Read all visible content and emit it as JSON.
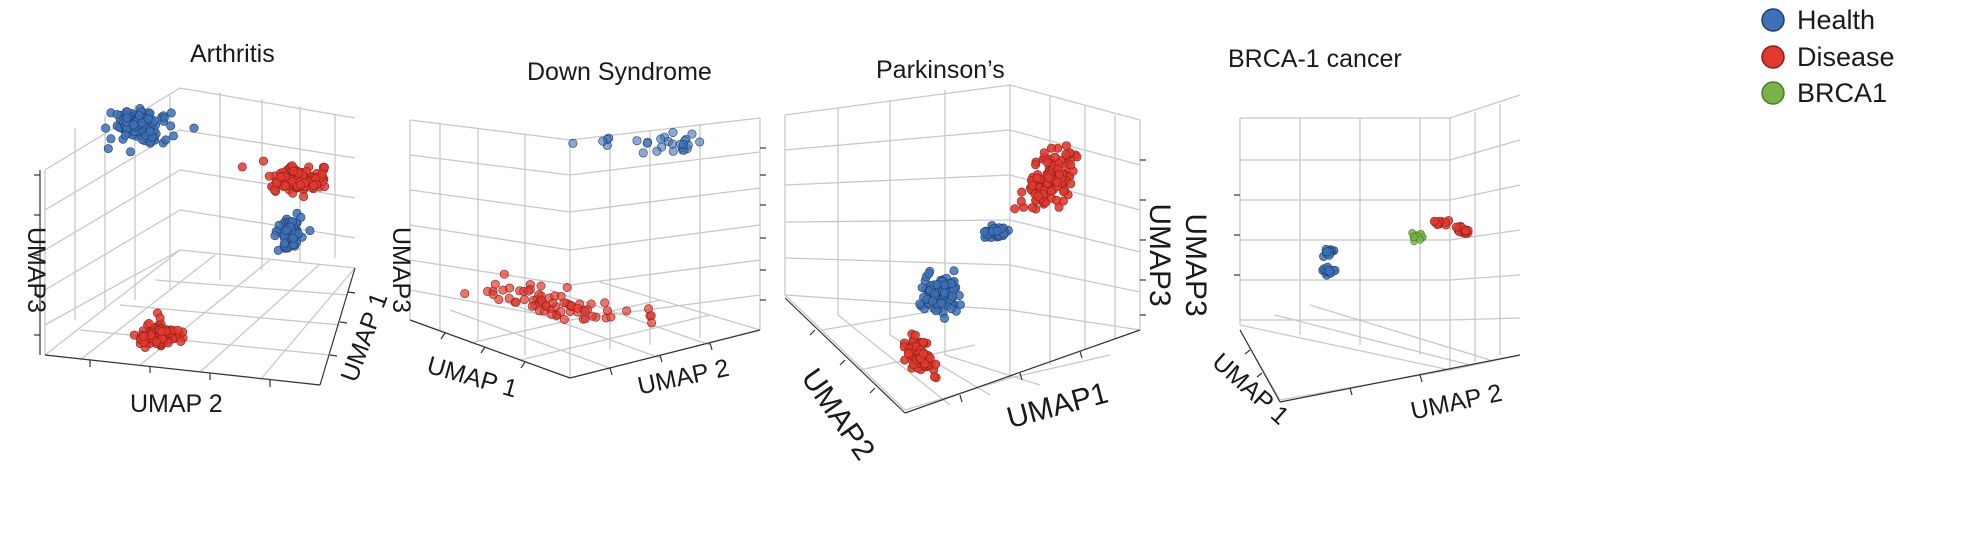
{
  "chart_data": [
    {
      "type": "scatter",
      "projection": "3d",
      "title": "Arthritis",
      "axes": {
        "x": "UMAP 1",
        "y": "UMAP 2",
        "z": "UMAP3"
      },
      "grid": true,
      "legend": "top-right",
      "series": [
        {
          "name": "Health",
          "points": [
            [
              -4.5,
              3.5,
              4.2
            ],
            [
              3.8,
              -2.5,
              -0.5
            ]
          ]
        },
        {
          "name": "Disease",
          "points": [
            [
              4.0,
              3.5,
              1.6
            ],
            [
              -3.5,
              -3.8,
              -4.0
            ]
          ]
        }
      ]
    },
    {
      "type": "scatter",
      "projection": "3d",
      "title": "Down Syndrome",
      "axes": {
        "x": "UMAP 1",
        "y": "UMAP 2",
        "z": "UMAP3"
      },
      "grid": true,
      "series": [
        {
          "name": "Health",
          "points": [
            [
              -1.0,
              3.5,
              4.3
            ],
            [
              2.5,
              3.0,
              4.1
            ]
          ]
        },
        {
          "name": "Disease",
          "points": [
            [
              -4.0,
              -3.0,
              -3.6
            ],
            [
              0.5,
              -2.0,
              -4.0
            ]
          ]
        }
      ]
    },
    {
      "type": "scatter",
      "projection": "3d",
      "title": "Parkinson’s",
      "axes": {
        "x": "UMAP1",
        "y": "UMAP2",
        "z": "UMAP3"
      },
      "grid": true,
      "series": [
        {
          "name": "Health",
          "points": [
            [
              -1.0,
              1.5,
              1.4
            ],
            [
              -2.0,
              -1.5,
              -1.0
            ]
          ]
        },
        {
          "name": "Disease",
          "points": [
            [
              3.5,
              3.0,
              4.0
            ],
            [
              -3.5,
              -3.5,
              -3.8
            ]
          ]
        }
      ]
    },
    {
      "type": "scatter",
      "projection": "3d",
      "title": "BRCA-1 cancer",
      "axes": {
        "x": "UMAP 1",
        "y": "UMAP 2",
        "z": "UMAP3"
      },
      "grid": true,
      "series": [
        {
          "name": "Health",
          "points": [
            [
              -3.5,
              1.5,
              0.2
            ],
            [
              -3.5,
              1.5,
              -1.0
            ]
          ]
        },
        {
          "name": "Disease",
          "points": [
            [
              2.8,
              1.5,
              1.5
            ],
            [
              3.8,
              1.5,
              1.3
            ]
          ]
        },
        {
          "name": "BRCA1",
          "points": [
            [
              1.2,
              1.5,
              1.1
            ]
          ]
        }
      ]
    }
  ],
  "legend": {
    "items": [
      {
        "label": "Health",
        "color": "#3d70b5"
      },
      {
        "label": "Disease",
        "color": "#e03a2f"
      },
      {
        "label": "BRCA1",
        "color": "#79b34a"
      }
    ]
  }
}
